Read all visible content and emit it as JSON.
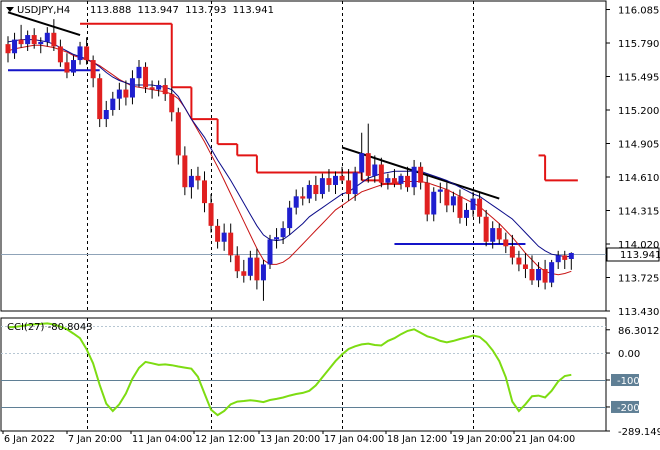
{
  "chart_data": [
    {
      "type": "candlestick",
      "title": "USDJPY,H4",
      "ohlc_readout": [
        "113.888",
        "113.947",
        "113.793",
        "113.941"
      ],
      "last_price_label": "113.941",
      "y_ticks": [
        "116.085",
        "115.790",
        "115.495",
        "115.200",
        "114.905",
        "114.610",
        "114.315",
        "114.020",
        "113.725",
        "113.430"
      ],
      "ylim": [
        113.43,
        116.16
      ],
      "x_ticks": [
        "6 Jan 2022",
        "7 Jan 20:00",
        "11 Jan 04:00",
        "12 Jan 12:00",
        "13 Jan 20:00",
        "17 Jan 04:00",
        "18 Jan 12:00",
        "19 Jan 20:00",
        "21 Jan 04:00"
      ],
      "candles": [
        [
          115.78,
          115.85,
          115.62,
          115.7
        ],
        [
          115.7,
          115.88,
          115.65,
          115.82
        ],
        [
          115.82,
          115.95,
          115.75,
          115.78
        ],
        [
          115.78,
          115.9,
          115.72,
          115.86
        ],
        [
          115.86,
          115.92,
          115.74,
          115.78
        ],
        [
          115.78,
          115.84,
          115.7,
          115.8
        ],
        [
          115.8,
          115.93,
          115.76,
          115.88
        ],
        [
          115.88,
          116.0,
          115.72,
          115.76
        ],
        [
          115.76,
          115.82,
          115.58,
          115.62
        ],
        [
          115.62,
          115.7,
          115.48,
          115.53
        ],
        [
          115.53,
          115.68,
          115.5,
          115.64
        ],
        [
          115.64,
          115.8,
          115.6,
          115.76
        ],
        [
          115.76,
          115.84,
          115.6,
          115.64
        ],
        [
          115.64,
          115.68,
          115.4,
          115.48
        ],
        [
          115.48,
          115.52,
          115.05,
          115.12
        ],
        [
          115.12,
          115.28,
          115.05,
          115.2
        ],
        [
          115.2,
          115.36,
          115.15,
          115.3
        ],
        [
          115.3,
          115.44,
          115.2,
          115.38
        ],
        [
          115.38,
          115.46,
          115.24,
          115.31
        ],
        [
          115.31,
          115.55,
          115.25,
          115.48
        ],
        [
          115.48,
          115.64,
          115.4,
          115.58
        ],
        [
          115.58,
          115.62,
          115.35,
          115.4
        ],
        [
          115.4,
          115.46,
          115.3,
          115.38
        ],
        [
          115.38,
          115.46,
          115.32,
          115.42
        ],
        [
          115.42,
          115.48,
          115.28,
          115.34
        ],
        [
          115.34,
          115.4,
          115.1,
          115.18
        ],
        [
          115.18,
          115.22,
          114.72,
          114.8
        ],
        [
          114.8,
          114.88,
          114.45,
          114.52
        ],
        [
          114.52,
          114.68,
          114.42,
          114.62
        ],
        [
          114.62,
          114.7,
          114.5,
          114.58
        ],
        [
          114.58,
          114.66,
          114.3,
          114.38
        ],
        [
          114.38,
          114.46,
          114.12,
          114.18
        ],
        [
          114.18,
          114.24,
          113.98,
          114.04
        ],
        [
          114.04,
          114.2,
          113.96,
          114.12
        ],
        [
          114.12,
          114.2,
          113.86,
          113.92
        ],
        [
          113.92,
          114.0,
          113.72,
          113.78
        ],
        [
          113.78,
          113.88,
          113.68,
          113.74
        ],
        [
          113.74,
          113.96,
          113.7,
          113.9
        ],
        [
          113.9,
          113.98,
          113.62,
          113.7
        ],
        [
          113.7,
          113.88,
          113.52,
          113.84
        ],
        [
          113.84,
          114.1,
          113.8,
          114.06
        ],
        [
          114.06,
          114.16,
          113.98,
          114.08
        ],
        [
          114.08,
          114.22,
          114.02,
          114.16
        ],
        [
          114.16,
          114.4,
          114.1,
          114.34
        ],
        [
          114.34,
          114.5,
          114.28,
          114.44
        ],
        [
          114.44,
          114.52,
          114.36,
          114.42
        ],
        [
          114.42,
          114.58,
          114.38,
          114.54
        ],
        [
          114.54,
          114.62,
          114.4,
          114.46
        ],
        [
          114.46,
          114.64,
          114.42,
          114.6
        ],
        [
          114.6,
          114.68,
          114.48,
          114.54
        ],
        [
          114.54,
          114.66,
          114.46,
          114.62
        ],
        [
          114.62,
          114.7,
          114.55,
          114.58
        ],
        [
          114.58,
          114.68,
          114.4,
          114.46
        ],
        [
          114.46,
          114.7,
          114.4,
          114.65
        ],
        [
          114.65,
          115.0,
          114.58,
          114.82
        ],
        [
          114.82,
          115.08,
          114.56,
          114.62
        ],
        [
          114.62,
          114.8,
          114.56,
          114.72
        ],
        [
          114.72,
          114.78,
          114.52,
          114.56
        ],
        [
          114.56,
          114.64,
          114.5,
          114.6
        ],
        [
          114.6,
          114.68,
          114.52,
          114.55
        ],
        [
          114.55,
          114.64,
          114.5,
          114.62
        ],
        [
          114.62,
          114.7,
          114.48,
          114.52
        ],
        [
          114.52,
          114.76,
          114.45,
          114.7
        ],
        [
          114.7,
          114.74,
          114.5,
          114.56
        ],
        [
          114.56,
          114.62,
          114.22,
          114.28
        ],
        [
          114.28,
          114.52,
          114.22,
          114.48
        ],
        [
          114.48,
          114.56,
          114.38,
          114.5
        ],
        [
          114.5,
          114.56,
          114.3,
          114.36
        ],
        [
          114.36,
          114.48,
          114.3,
          114.44
        ],
        [
          114.44,
          114.5,
          114.2,
          114.25
        ],
        [
          114.25,
          114.38,
          114.18,
          114.32
        ],
        [
          114.32,
          114.48,
          114.26,
          114.42
        ],
        [
          114.42,
          114.48,
          114.2,
          114.26
        ],
        [
          114.26,
          114.32,
          114.0,
          114.04
        ],
        [
          114.04,
          114.22,
          113.98,
          114.16
        ],
        [
          114.16,
          114.2,
          114.02,
          114.06
        ],
        [
          114.06,
          114.12,
          113.94,
          114.0
        ],
        [
          114.0,
          114.1,
          113.84,
          113.9
        ],
        [
          113.9,
          113.96,
          113.78,
          113.84
        ],
        [
          113.84,
          113.94,
          113.72,
          113.8
        ],
        [
          113.8,
          113.92,
          113.66,
          113.7
        ],
        [
          113.7,
          113.86,
          113.64,
          113.8
        ],
        [
          113.8,
          113.88,
          113.62,
          113.68
        ],
        [
          113.68,
          113.88,
          113.64,
          113.86
        ],
        [
          113.86,
          113.96,
          113.8,
          113.92
        ],
        [
          113.92,
          113.96,
          113.8,
          113.88
        ],
        [
          113.888,
          113.947,
          113.793,
          113.941
        ]
      ],
      "blue_ma": [
        115.8,
        115.81,
        115.82,
        115.82,
        115.82,
        115.81,
        115.8,
        115.78,
        115.75,
        115.72,
        115.69,
        115.67,
        115.65,
        115.62,
        115.58,
        115.53,
        115.49,
        115.46,
        115.44,
        115.42,
        115.42,
        115.42,
        115.42,
        115.41,
        115.4,
        115.38,
        115.32,
        115.22,
        115.12,
        115.04,
        114.96,
        114.86,
        114.76,
        114.67,
        114.58,
        114.48,
        114.38,
        114.28,
        114.18,
        114.1,
        114.06,
        114.05,
        114.06,
        114.1,
        114.15,
        114.2,
        114.26,
        114.3,
        114.34,
        114.38,
        114.42,
        114.46,
        114.48,
        114.52,
        114.56,
        114.6,
        114.62,
        114.64,
        114.65,
        114.66,
        114.66,
        114.66,
        114.66,
        114.66,
        114.64,
        114.62,
        114.6,
        114.58,
        114.55,
        114.52,
        114.49,
        114.46,
        114.44,
        114.4,
        114.36,
        114.32,
        114.28,
        114.24,
        114.18,
        114.12,
        114.06,
        114.0,
        113.96,
        113.93,
        113.92,
        113.91,
        113.91
      ],
      "red_ma": [
        115.72,
        115.74,
        115.75,
        115.76,
        115.77,
        115.77,
        115.76,
        115.75,
        115.73,
        115.71,
        115.68,
        115.66,
        115.64,
        115.62,
        115.59,
        115.55,
        115.51,
        115.47,
        115.44,
        115.41,
        115.4,
        115.39,
        115.38,
        115.37,
        115.36,
        115.34,
        115.3,
        115.22,
        115.12,
        115.02,
        114.92,
        114.81,
        114.7,
        114.58,
        114.46,
        114.34,
        114.22,
        114.1,
        113.98,
        113.88,
        113.84,
        113.84,
        113.86,
        113.9,
        113.96,
        114.02,
        114.08,
        114.14,
        114.2,
        114.26,
        114.32,
        114.36,
        114.4,
        114.44,
        114.48,
        114.5,
        114.52,
        114.54,
        114.55,
        114.56,
        114.57,
        114.57,
        114.57,
        114.57,
        114.56,
        114.54,
        114.52,
        114.5,
        114.47,
        114.44,
        114.41,
        114.38,
        114.35,
        114.3,
        114.25,
        114.2,
        114.14,
        114.08,
        114.01,
        113.94,
        113.88,
        113.82,
        113.78,
        113.76,
        113.75,
        113.76,
        113.78
      ],
      "stop_segments": [
        {
          "from": 11,
          "to": 25,
          "value": 115.96
        },
        {
          "from": 25,
          "to": 28,
          "value": 115.4
        },
        {
          "from": 28,
          "to": 32,
          "value": 115.12
        },
        {
          "from": 32,
          "to": 35,
          "value": 114.9
        },
        {
          "from": 35,
          "to": 38,
          "value": 114.8
        },
        {
          "from": 38,
          "to": 54,
          "value": 114.65
        },
        {
          "from": 54,
          "to": 57,
          "value": 114.58
        },
        {
          "from": 57,
          "to": 60,
          "value": 114.55
        },
        {
          "from": 81,
          "to": 82,
          "value": 114.8
        },
        {
          "from": 82,
          "to": 87,
          "value": 114.58
        }
      ],
      "trendlines": [
        {
          "color": "#000000",
          "from": [
            0,
            116.06
          ],
          "to": [
            11,
            115.86
          ]
        },
        {
          "color": "#000000",
          "from": [
            51,
            114.87
          ],
          "to": [
            75,
            114.42
          ]
        },
        {
          "color": "#1414c8",
          "from": [
            0,
            115.55
          ],
          "to": [
            14,
            115.55
          ]
        },
        {
          "color": "#1414c8",
          "from": [
            59,
            114.02
          ],
          "to": [
            79,
            114.02
          ]
        }
      ],
      "vertical_date_lines": [
        12,
        31,
        51,
        71
      ],
      "bull_color": "#1f1fcf",
      "bear_color": "#e02020",
      "ma_blue_color": "#0c0c8a",
      "ma_red_color": "#c81414",
      "stop_color": "#e21414"
    },
    {
      "type": "line",
      "title": "CCI(27) -80.8043",
      "y_ticks": [
        "86.3012",
        "0.00",
        "-100",
        "-200",
        "-289.149"
      ],
      "ylim": [
        -289.149,
        130
      ],
      "levels": [
        100,
        0,
        -100,
        -200
      ],
      "levels_bold": [
        -100,
        -200
      ],
      "series_color": "#7ddc12",
      "values": [
        95,
        97,
        100,
        104,
        107,
        108,
        110,
        106,
        98,
        88,
        72,
        55,
        14,
        -38,
        -118,
        -188,
        -215,
        -190,
        -150,
        -95,
        -55,
        -33,
        -38,
        -44,
        -42,
        -45,
        -50,
        -54,
        -58,
        -88,
        -150,
        -210,
        -230,
        -215,
        -190,
        -180,
        -178,
        -175,
        -178,
        -182,
        -174,
        -170,
        -165,
        -158,
        -152,
        -148,
        -140,
        -120,
        -90,
        -60,
        -30,
        -5,
        15,
        25,
        32,
        35,
        30,
        28,
        45,
        55,
        70,
        82,
        88,
        75,
        62,
        55,
        45,
        40,
        45,
        52,
        58,
        65,
        60,
        40,
        10,
        -30,
        -90,
        -180,
        -215,
        -190,
        -160,
        -158,
        -165,
        -140,
        -105,
        -85,
        -80.8
      ]
    }
  ]
}
